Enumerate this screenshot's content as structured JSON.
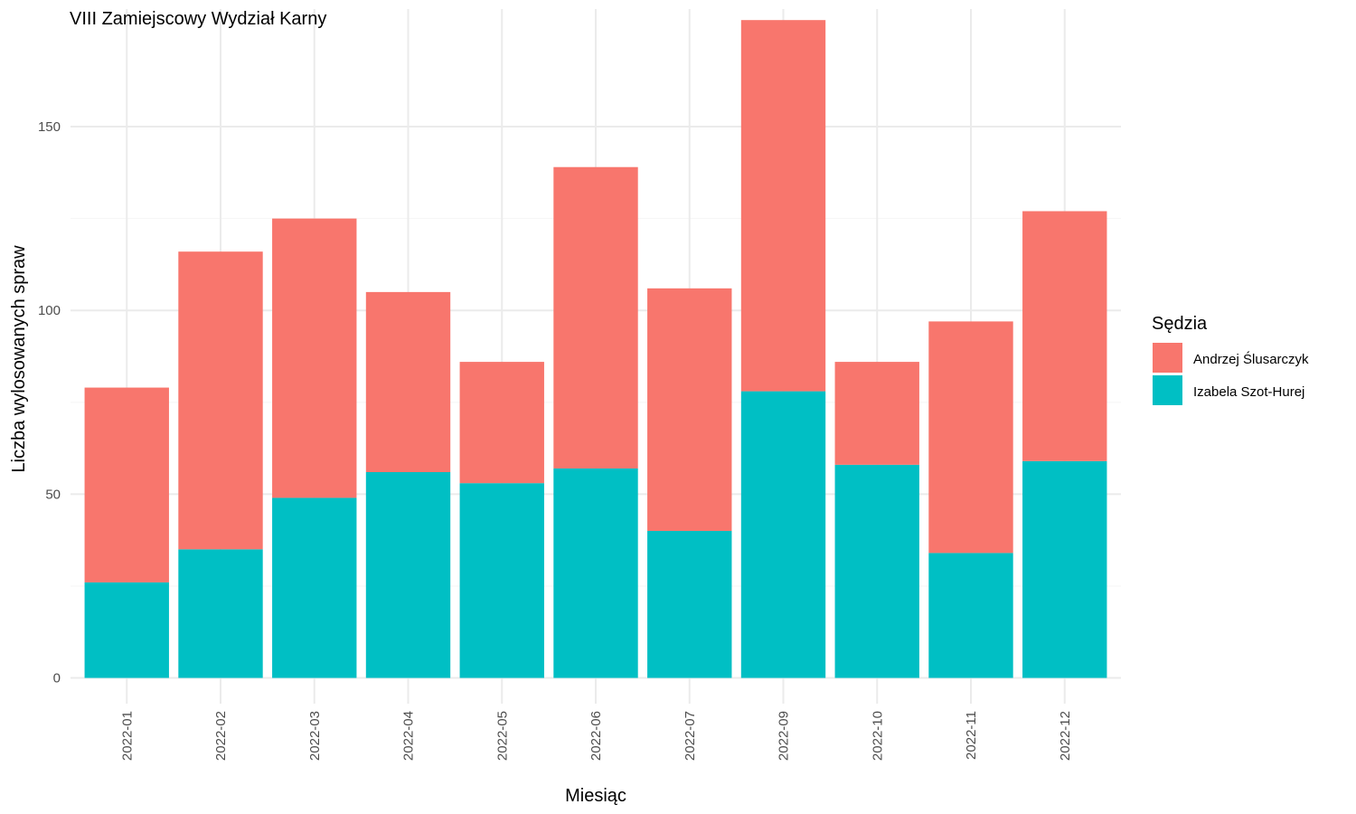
{
  "chart_data": {
    "type": "bar",
    "stacked": true,
    "title": "VIII Zamiejscowy Wydział Karny",
    "xlabel": "Miesiąc",
    "ylabel": "Liczba wylosowanych spraw",
    "categories": [
      "2022-01",
      "2022-02",
      "2022-03",
      "2022-04",
      "2022-05",
      "2022-06",
      "2022-07",
      "2022-09",
      "2022-10",
      "2022-11",
      "2022-12"
    ],
    "series": [
      {
        "name": "Izabela Szot-Hurej",
        "color": "#00BFC4",
        "values": [
          26,
          35,
          49,
          56,
          53,
          57,
          40,
          78,
          58,
          34,
          59
        ]
      },
      {
        "name": "Andrzej Ślusarczyk",
        "color": "#F8766D",
        "values": [
          53,
          81,
          76,
          49,
          33,
          82,
          66,
          101,
          28,
          63,
          68
        ]
      }
    ],
    "y_ticks": [
      0,
      50,
      100,
      150
    ],
    "ylim": [
      -7,
      182
    ],
    "grid": true,
    "legend": {
      "title": "Sędzia",
      "position": "right",
      "entries": [
        {
          "label": "Andrzej Ślusarczyk",
          "color": "#F8766D"
        },
        {
          "label": "Izabela Szot-Hurej",
          "color": "#00BFC4"
        }
      ]
    }
  }
}
